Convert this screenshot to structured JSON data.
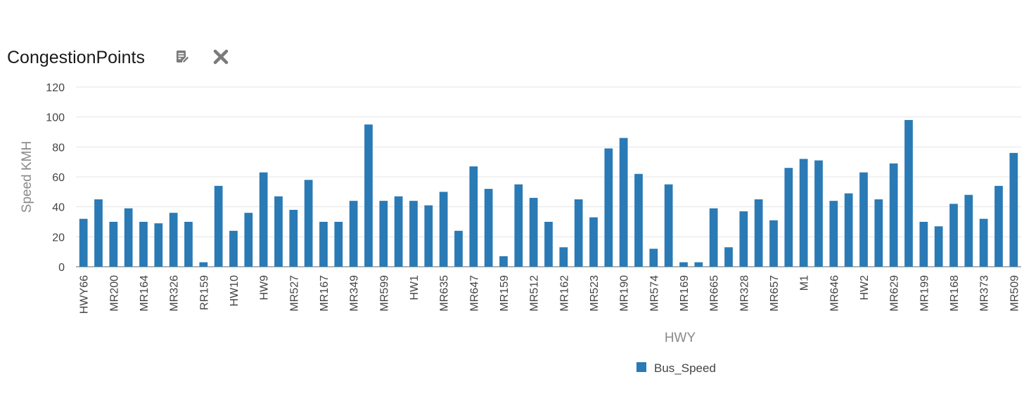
{
  "header": {
    "title": "CongestionPoints",
    "icons": [
      "edit-notes-icon",
      "close-icon"
    ]
  },
  "colors": {
    "bar": "#2a7ab5",
    "grid": "#e4e4e4",
    "axis_text": "#444444",
    "axis_title": "#8a8a8a",
    "icon": "#7a7a7a"
  },
  "chart_data": {
    "type": "bar",
    "xlabel": "HWY",
    "ylabel": "Speed KMH",
    "ylim": [
      0,
      120
    ],
    "yticks": [
      0,
      20,
      40,
      60,
      80,
      100,
      120
    ],
    "grid": true,
    "legend_position": "bottom",
    "categories": [
      "HWY66",
      "",
      "MR200",
      "",
      "MR164",
      "",
      "MR326",
      "",
      "RR159",
      "",
      "HW10",
      "",
      "HW9",
      "",
      "MR527",
      "",
      "MR167",
      "",
      "MR349",
      "",
      "MR599",
      "",
      "HW1",
      "",
      "MR635",
      "",
      "MR647",
      "",
      "MR159",
      "",
      "MR512",
      "",
      "MR162",
      "",
      "MR523",
      "",
      "MR190",
      "",
      "MR574",
      "",
      "MR169",
      "",
      "MR665",
      "",
      "MR328",
      "",
      "MR657",
      "",
      "M1",
      "",
      "MR646",
      "",
      "HW2",
      "",
      "MR629",
      "",
      "MR199",
      "",
      "MR168",
      "",
      "MR373",
      "",
      "MR509"
    ],
    "series": [
      {
        "name": "Bus_Speed",
        "values": [
          32,
          45,
          30,
          39,
          30,
          29,
          36,
          30,
          3,
          54,
          24,
          36,
          63,
          47,
          38,
          58,
          30,
          30,
          44,
          95,
          44,
          47,
          44,
          41,
          50,
          24,
          67,
          52,
          7,
          55,
          46,
          30,
          13,
          45,
          33,
          79,
          86,
          62,
          12,
          55,
          3,
          3,
          39,
          13,
          37,
          45,
          31,
          66,
          72,
          71,
          44,
          49,
          63,
          45,
          69,
          98,
          30,
          27,
          42,
          48,
          32,
          54,
          76
        ]
      }
    ]
  }
}
